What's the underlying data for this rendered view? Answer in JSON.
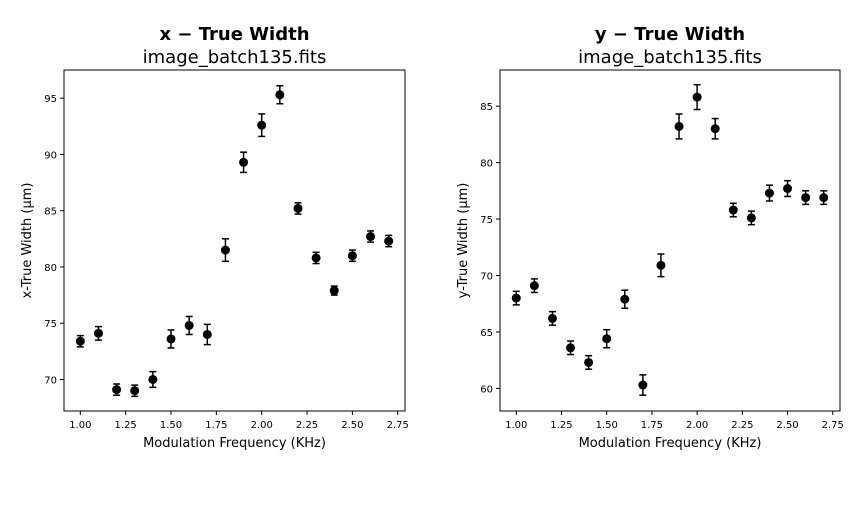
{
  "chart_data": [
    {
      "type": "scatter",
      "title": "x − True Width",
      "subtitle": "image_batch135.fits",
      "xlabel": "Modulation Frequency (KHz)",
      "ylabel": "x-True Width (µm)",
      "xlim": [
        0.91,
        2.79
      ],
      "ylim": [
        67.2,
        97.5
      ],
      "xticks": [
        "1.00",
        "1.25",
        "1.50",
        "1.75",
        "2.00",
        "2.25",
        "2.50",
        "2.75"
      ],
      "yticks": [
        "70",
        "75",
        "80",
        "85",
        "90",
        "95"
      ],
      "x": [
        1.0,
        1.1,
        1.2,
        1.3,
        1.4,
        1.5,
        1.6,
        1.7,
        1.8,
        1.9,
        2.0,
        2.1,
        2.2,
        2.3,
        2.4,
        2.5,
        2.6,
        2.7
      ],
      "y": [
        73.4,
        74.1,
        69.1,
        69.0,
        70.0,
        73.6,
        74.8,
        74.0,
        81.5,
        89.3,
        92.6,
        95.3,
        85.2,
        80.8,
        77.9,
        81.0,
        82.7,
        82.3
      ],
      "yerr": [
        0.5,
        0.6,
        0.5,
        0.5,
        0.7,
        0.8,
        0.8,
        0.9,
        1.0,
        0.9,
        1.0,
        0.8,
        0.5,
        0.5,
        0.4,
        0.5,
        0.5,
        0.5
      ]
    },
    {
      "type": "scatter",
      "title": "y − True Width",
      "subtitle": "image_batch135.fits",
      "xlabel": "Modulation Frequency (KHz)",
      "ylabel": "y-True Width (µm)",
      "xlim": [
        0.91,
        2.79
      ],
      "ylim": [
        58.0,
        88.2
      ],
      "xticks": [
        "1.00",
        "1.25",
        "1.50",
        "1.75",
        "2.00",
        "2.25",
        "2.50",
        "2.75"
      ],
      "yticks": [
        "60",
        "65",
        "70",
        "75",
        "80",
        "85"
      ],
      "x": [
        1.0,
        1.1,
        1.2,
        1.3,
        1.4,
        1.5,
        1.6,
        1.7,
        1.8,
        1.9,
        2.0,
        2.1,
        2.2,
        2.3,
        2.4,
        2.5,
        2.6,
        2.7
      ],
      "y": [
        68.0,
        69.1,
        66.2,
        63.6,
        62.3,
        64.4,
        67.9,
        60.3,
        70.9,
        83.2,
        85.8,
        83.0,
        75.8,
        75.1,
        77.3,
        77.7,
        76.9,
        76.9
      ],
      "yerr": [
        0.6,
        0.6,
        0.6,
        0.6,
        0.6,
        0.8,
        0.8,
        0.9,
        1.0,
        1.1,
        1.1,
        0.9,
        0.6,
        0.6,
        0.7,
        0.7,
        0.6,
        0.6
      ]
    }
  ]
}
